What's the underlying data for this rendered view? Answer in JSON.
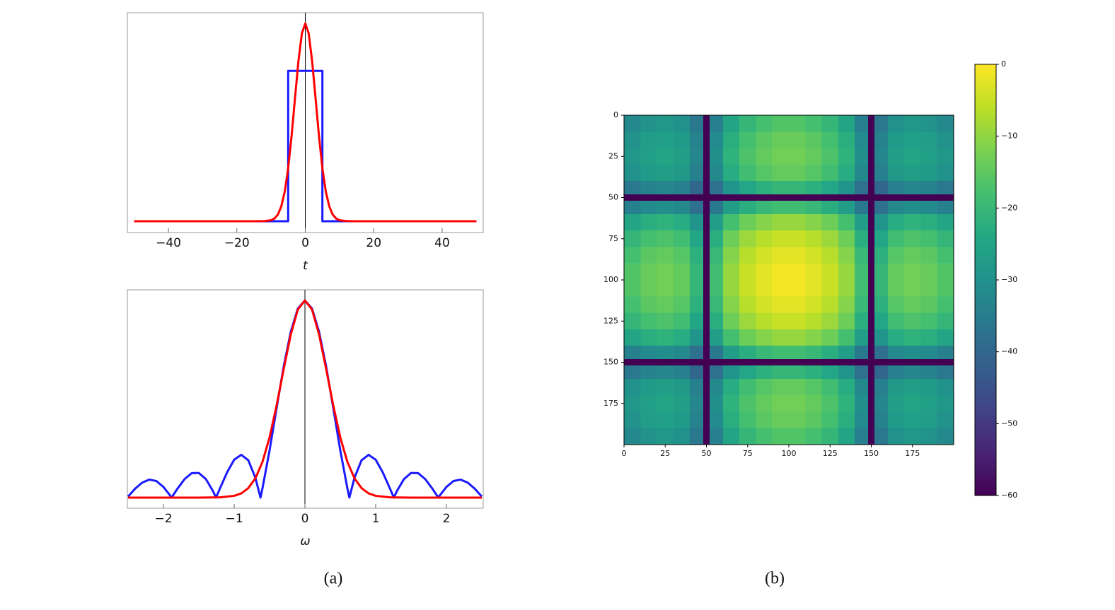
{
  "captions": [
    "(a)",
    "(b)"
  ],
  "chart_data": [
    {
      "type": "line",
      "xlabel": "t",
      "xlim": [
        -52,
        52
      ],
      "ylim": [
        -0.057,
        1.054
      ],
      "xticks": [
        {
          "value": -40,
          "label": "−40"
        },
        {
          "value": -20,
          "label": "−20"
        },
        0,
        20,
        40
      ],
      "series": [
        {
          "color": "#1a1aff",
          "x": [
            -50,
            -5,
            -5,
            5,
            5,
            50
          ],
          "values": [
            0,
            0,
            0.76,
            0.76,
            0,
            0
          ]
        },
        {
          "color": "#ff0000",
          "x": [
            -50,
            -15,
            -12,
            -10,
            -9,
            -8,
            -7,
            -6,
            -5,
            -4,
            -3,
            -2,
            -1,
            0,
            1,
            2,
            3,
            4,
            5,
            6,
            7,
            8,
            9,
            10,
            12,
            15,
            50
          ],
          "values": [
            0,
            0,
            0.001,
            0.005,
            0.014,
            0.034,
            0.076,
            0.15,
            0.268,
            0.431,
            0.623,
            0.81,
            0.949,
            1,
            0.949,
            0.81,
            0.623,
            0.431,
            0.268,
            0.15,
            0.076,
            0.034,
            0.014,
            0.005,
            0.001,
            0,
            0
          ]
        }
      ]
    },
    {
      "type": "line",
      "xlabel": "ω",
      "xlim": [
        -2.51,
        2.52
      ],
      "ylim": [
        -0.054,
        1.054
      ],
      "xticks": [
        {
          "value": -2,
          "label": "−2"
        },
        {
          "value": -1,
          "label": "−1"
        },
        0,
        1,
        2
      ],
      "series": [
        {
          "color": "#1a1aff",
          "x": [
            -2.5,
            -2.4,
            -2.3,
            -2.2,
            -2.1,
            -2.0,
            -1.9,
            -1.885,
            -1.8,
            -1.7,
            -1.6,
            -1.5,
            -1.4,
            -1.3,
            -1.257,
            -1.2,
            -1.1,
            -1.0,
            -0.9,
            -0.8,
            -0.7,
            -0.628,
            -0.6,
            -0.5,
            -0.4,
            -0.3,
            -0.2,
            -0.1,
            0,
            0.1,
            0.2,
            0.3,
            0.4,
            0.5,
            0.6,
            0.628,
            0.7,
            0.8,
            0.9,
            1.0,
            1.1,
            1.2,
            1.257,
            1.3,
            1.4,
            1.5,
            1.6,
            1.7,
            1.8,
            1.885,
            1.9,
            2.0,
            2.1,
            2.2,
            2.3,
            2.4,
            2.5
          ],
          "values": [
            0.005,
            0.045,
            0.076,
            0.091,
            0.084,
            0.054,
            0.008,
            0,
            0.046,
            0.094,
            0.124,
            0.125,
            0.094,
            0.033,
            0,
            0.047,
            0.128,
            0.192,
            0.217,
            0.189,
            0.1,
            0,
            0.047,
            0.239,
            0.455,
            0.665,
            0.841,
            0.959,
            1,
            0.959,
            0.841,
            0.665,
            0.455,
            0.239,
            0.047,
            0,
            0.1,
            0.189,
            0.217,
            0.192,
            0.128,
            0.047,
            0,
            0.033,
            0.094,
            0.125,
            0.124,
            0.094,
            0.046,
            0,
            0.008,
            0.054,
            0.084,
            0.091,
            0.076,
            0.045,
            0.005
          ]
        },
        {
          "color": "#ff0000",
          "x": [
            -2.5,
            -1.5,
            -1.2,
            -1,
            -0.9,
            -0.8,
            -0.7,
            -0.6,
            -0.5,
            -0.4,
            -0.3,
            -0.2,
            -0.1,
            0,
            0.1,
            0.2,
            0.3,
            0.4,
            0.5,
            0.6,
            0.7,
            0.8,
            0.9,
            1,
            1.2,
            1.5,
            2.5
          ],
          "values": [
            0,
            0,
            0.001,
            0.009,
            0.021,
            0.048,
            0.098,
            0.181,
            0.305,
            0.468,
            0.652,
            0.827,
            0.954,
            1,
            0.954,
            0.827,
            0.652,
            0.468,
            0.305,
            0.181,
            0.098,
            0.048,
            0.021,
            0.009,
            0.001,
            0,
            0
          ]
        }
      ]
    },
    {
      "type": "heatmap",
      "colormap": "viridis",
      "xlim": [
        0,
        200
      ],
      "ylim": [
        200,
        0
      ],
      "xticks": [
        0,
        25,
        50,
        75,
        100,
        125,
        150,
        175
      ],
      "yticks": [
        0,
        25,
        50,
        75,
        100,
        125,
        150,
        175
      ],
      "x_edges": [
        0,
        10,
        20,
        30,
        40,
        48,
        52,
        60,
        70,
        80,
        90,
        100,
        110,
        120,
        130,
        140,
        148,
        152,
        160,
        170,
        180,
        190,
        200
      ],
      "y_edges": [
        0,
        10,
        20,
        30,
        40,
        48,
        52,
        60,
        70,
        80,
        90,
        100,
        110,
        120,
        130,
        140,
        148,
        152,
        160,
        170,
        180,
        190,
        200
      ],
      "colorbar": {
        "lim": [
          -60,
          0
        ],
        "ticks": [
          0,
          {
            "value": -10,
            "label": "−10"
          },
          {
            "value": -20,
            "label": "−20"
          },
          {
            "value": -30,
            "label": "−30"
          },
          {
            "value": -40,
            "label": "−40"
          },
          {
            "value": -50,
            "label": "−50"
          },
          {
            "value": -60,
            "label": "−60"
          }
        ]
      },
      "values": [
        [
          -32,
          -29.5,
          -28.5,
          -30,
          -36,
          -60,
          -34,
          -25,
          -20.5,
          -18,
          -16.5,
          -16.5,
          -18,
          -20.5,
          -25,
          -34,
          -60,
          -36,
          -30,
          -28.5,
          -29.5,
          -32
        ],
        [
          -29.5,
          -27,
          -26,
          -27.5,
          -33.5,
          -60,
          -31.5,
          -22.5,
          -18,
          -15.5,
          -14,
          -14,
          -15.5,
          -18,
          -22.5,
          -31.5,
          -60,
          -33.5,
          -27.5,
          -26,
          -27,
          -29.5
        ],
        [
          -28.5,
          -26,
          -25,
          -26.5,
          -32.5,
          -60,
          -30.5,
          -21.5,
          -17,
          -14.5,
          -13,
          -13,
          -14.5,
          -17,
          -21.5,
          -30.5,
          -60,
          -32.5,
          -26.5,
          -25,
          -26,
          -28.5
        ],
        [
          -30,
          -27.5,
          -26.5,
          -28,
          -34,
          -60,
          -32,
          -23,
          -18.5,
          -16,
          -14.5,
          -14.5,
          -16,
          -18.5,
          -23,
          -32,
          -60,
          -34,
          -28,
          -26.5,
          -27.5,
          -30
        ],
        [
          -36,
          -33.5,
          -32.5,
          -34,
          -40,
          -60,
          -38,
          -29,
          -24.5,
          -22,
          -20.5,
          -20.5,
          -22,
          -24.5,
          -29,
          -38,
          -60,
          -40,
          -34,
          -32.5,
          -33.5,
          -36
        ],
        [
          -60,
          -60,
          -60,
          -60,
          -60,
          -60,
          -60,
          -60,
          -60,
          -60,
          -60,
          -60,
          -60,
          -60,
          -60,
          -60,
          -60,
          -60,
          -60,
          -60,
          -60,
          -60
        ],
        [
          -34,
          -31.5,
          -30.5,
          -32,
          -38,
          -60,
          -36,
          -27,
          -22.5,
          -20,
          -18.5,
          -18.5,
          -20,
          -22.5,
          -27,
          -36,
          -60,
          -38,
          -32,
          -30.5,
          -31.5,
          -34
        ],
        [
          -25,
          -22.5,
          -21.5,
          -23,
          -29,
          -60,
          -27,
          -18,
          -13.5,
          -11,
          -9.5,
          -9.5,
          -11,
          -13.5,
          -18,
          -27,
          -60,
          -29,
          -23,
          -21.5,
          -22.5,
          -25
        ],
        [
          -20.5,
          -18,
          -17,
          -18.5,
          -24.5,
          -60,
          -22.5,
          -13.5,
          -9,
          -6.5,
          -5,
          -5,
          -6.5,
          -9,
          -13.5,
          -22.5,
          -60,
          -24.5,
          -18.5,
          -17,
          -18,
          -20.5
        ],
        [
          -18,
          -15.5,
          -14.5,
          -16,
          -22,
          -60,
          -20,
          -11,
          -6.5,
          -4,
          -2.5,
          -2.5,
          -4,
          -6.5,
          -11,
          -20,
          -60,
          -22,
          -16,
          -14.5,
          -15.5,
          -18
        ],
        [
          -16.5,
          -14,
          -13,
          -14.5,
          -20.5,
          -60,
          -18.5,
          -9.5,
          -5,
          -2.5,
          -1,
          -1,
          -2.5,
          -5,
          -9.5,
          -18.5,
          -60,
          -20.5,
          -14.5,
          -13,
          -14,
          -16.5
        ],
        [
          -16.5,
          -14,
          -13,
          -14.5,
          -20.5,
          -60,
          -18.5,
          -9.5,
          -5,
          -2.5,
          -1,
          -1,
          -2.5,
          -5,
          -9.5,
          -18.5,
          -60,
          -20.5,
          -14.5,
          -13,
          -14,
          -16.5
        ],
        [
          -18,
          -15.5,
          -14.5,
          -16,
          -22,
          -60,
          -20,
          -11,
          -6.5,
          -4,
          -2.5,
          -2.5,
          -4,
          -6.5,
          -11,
          -20,
          -60,
          -22,
          -16,
          -14.5,
          -15.5,
          -18
        ],
        [
          -20.5,
          -18,
          -17,
          -18.5,
          -24.5,
          -60,
          -22.5,
          -13.5,
          -9,
          -6.5,
          -5,
          -5,
          -6.5,
          -9,
          -13.5,
          -22.5,
          -60,
          -24.5,
          -18.5,
          -17,
          -18,
          -20.5
        ],
        [
          -25,
          -22.5,
          -21.5,
          -23,
          -29,
          -60,
          -27,
          -18,
          -13.5,
          -11,
          -9.5,
          -9.5,
          -11,
          -13.5,
          -18,
          -27,
          -60,
          -29,
          -23,
          -21.5,
          -22.5,
          -25
        ],
        [
          -34,
          -31.5,
          -30.5,
          -32,
          -38,
          -60,
          -36,
          -27,
          -22.5,
          -20,
          -18.5,
          -18.5,
          -20,
          -22.5,
          -27,
          -36,
          -60,
          -38,
          -32,
          -30.5,
          -31.5,
          -34
        ],
        [
          -60,
          -60,
          -60,
          -60,
          -60,
          -60,
          -60,
          -60,
          -60,
          -60,
          -60,
          -60,
          -60,
          -60,
          -60,
          -60,
          -60,
          -60,
          -60,
          -60,
          -60,
          -60
        ],
        [
          -36,
          -33.5,
          -32.5,
          -34,
          -40,
          -60,
          -38,
          -29,
          -24.5,
          -22,
          -20.5,
          -20.5,
          -22,
          -24.5,
          -29,
          -38,
          -60,
          -40,
          -34,
          -32.5,
          -33.5,
          -36
        ],
        [
          -30,
          -27.5,
          -26.5,
          -28,
          -34,
          -60,
          -32,
          -23,
          -18.5,
          -16,
          -14.5,
          -14.5,
          -16,
          -18.5,
          -23,
          -32,
          -60,
          -34,
          -28,
          -26.5,
          -27.5,
          -30
        ],
        [
          -28.5,
          -26,
          -25,
          -26.5,
          -32.5,
          -60,
          -30.5,
          -21.5,
          -17,
          -14.5,
          -13,
          -13,
          -14.5,
          -17,
          -21.5,
          -30.5,
          -60,
          -32.5,
          -26.5,
          -25,
          -26,
          -28.5
        ],
        [
          -29.5,
          -27,
          -26,
          -27.5,
          -33.5,
          -60,
          -31.5,
          -22.5,
          -18,
          -15.5,
          -14,
          -14,
          -15.5,
          -18,
          -22.5,
          -31.5,
          -60,
          -33.5,
          -27.5,
          -26,
          -27,
          -29.5
        ],
        [
          -32,
          -29.5,
          -28.5,
          -30,
          -36,
          -60,
          -34,
          -25,
          -20.5,
          -18,
          -16.5,
          -16.5,
          -18,
          -20.5,
          -25,
          -34,
          -60,
          -36,
          -30,
          -28.5,
          -29.5,
          -32
        ]
      ]
    }
  ]
}
